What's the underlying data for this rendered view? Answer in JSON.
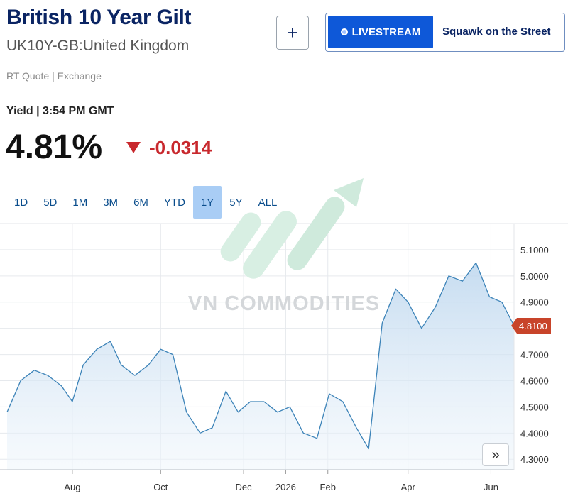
{
  "header": {
    "title": "British 10 Year Gilt",
    "subtitle": "UK10Y-GB:United Kingdom",
    "add_label": "+",
    "livestream_label": "LIVESTREAM",
    "show_label": "Squawk on the Street"
  },
  "quote": {
    "rt_quote": "RT Quote | Exchange",
    "yield_time": "Yield | 3:54 PM GMT",
    "price": "4.81%",
    "change": "-0.0314",
    "change_color": "#c8282d"
  },
  "tabs": [
    {
      "label": "1D",
      "active": false
    },
    {
      "label": "5D",
      "active": false
    },
    {
      "label": "1M",
      "active": false
    },
    {
      "label": "3M",
      "active": false
    },
    {
      "label": "6M",
      "active": false
    },
    {
      "label": "YTD",
      "active": false
    },
    {
      "label": "1Y",
      "active": true
    },
    {
      "label": "5Y",
      "active": false
    },
    {
      "label": "ALL",
      "active": false
    }
  ],
  "watermark": "VN COMMODITIES",
  "expand_icon": "double-chevron-right-icon",
  "colors": {
    "line": "#3c83b8",
    "accent": "#0e58d8",
    "down": "#c8282d"
  },
  "chart_data": {
    "type": "area",
    "title": "",
    "xlabel": "",
    "ylabel": "",
    "ylim": [
      4.26,
      5.2
    ],
    "x_tick_labels": [
      "Aug",
      "Oct",
      "Dec",
      "2026",
      "Feb",
      "Apr",
      "Jun"
    ],
    "y_tick_values": [
      4.3,
      4.4,
      4.5,
      4.6,
      4.7,
      4.8,
      4.9,
      5.0,
      5.1
    ],
    "y_tick_labels": [
      "4.3000",
      "4.4000",
      "4.5000",
      "4.6000",
      "4.7000",
      "4.8000",
      "4.9000",
      "5.0000",
      "5.1000"
    ],
    "last_value_label": "4.8100",
    "last_value": 4.81,
    "grid": true,
    "x": [
      "2025-06-10",
      "2025-06-20",
      "2025-06-30",
      "2025-07-10",
      "2025-07-20",
      "2025-07-28",
      "2025-08-05",
      "2025-08-15",
      "2025-08-25",
      "2025-09-02",
      "2025-09-12",
      "2025-09-22",
      "2025-10-01",
      "2025-10-10",
      "2025-10-20",
      "2025-10-30",
      "2025-11-08",
      "2025-11-18",
      "2025-11-27",
      "2025-12-06",
      "2025-12-16",
      "2025-12-26",
      "2026-01-04",
      "2026-01-14",
      "2026-01-24",
      "2026-02-02",
      "2026-02-12",
      "2026-02-22",
      "2026-03-03",
      "2026-03-13",
      "2026-03-23",
      "2026-04-01",
      "2026-04-11",
      "2026-04-21",
      "2026-05-01",
      "2026-05-11",
      "2026-05-21",
      "2026-05-31",
      "2026-06-09",
      "2026-06-18"
    ],
    "values": [
      4.48,
      4.6,
      4.64,
      4.62,
      4.58,
      4.52,
      4.66,
      4.72,
      4.75,
      4.66,
      4.62,
      4.66,
      4.72,
      4.7,
      4.48,
      4.4,
      4.42,
      4.56,
      4.48,
      4.52,
      4.52,
      4.48,
      4.5,
      4.4,
      4.38,
      4.55,
      4.52,
      4.42,
      4.34,
      4.82,
      4.95,
      4.9,
      4.8,
      4.88,
      5.0,
      4.98,
      5.05,
      4.92,
      4.9,
      4.81
    ]
  }
}
